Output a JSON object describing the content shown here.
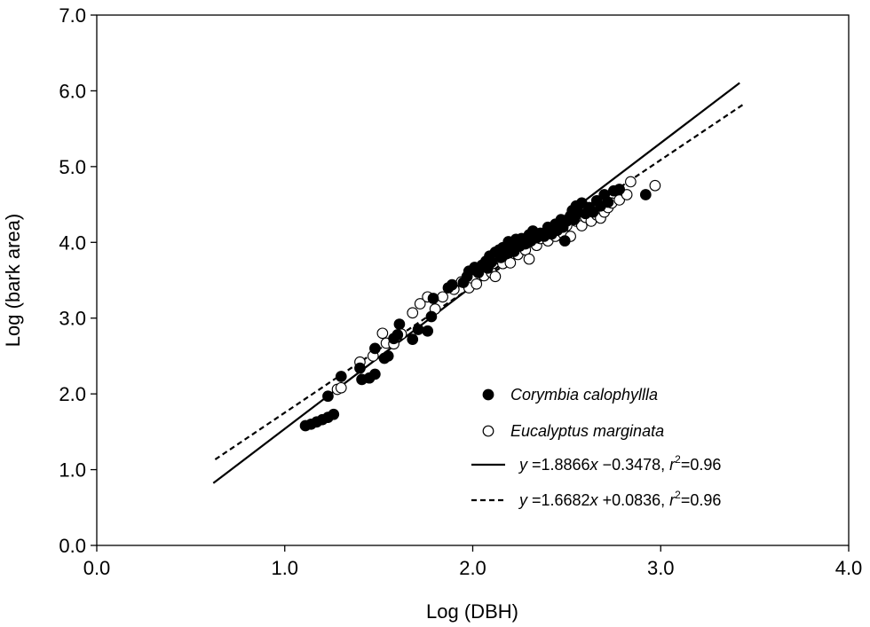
{
  "chart_data": {
    "type": "scatter",
    "xlabel": "Log (DBH)",
    "ylabel": "Log (bark area)",
    "xlim": [
      0.0,
      4.0
    ],
    "ylim": [
      0.0,
      7.0
    ],
    "xticks": [
      "0.0",
      "1.0",
      "2.0",
      "3.0",
      "4.0"
    ],
    "yticks": [
      "0.0",
      "1.0",
      "2.0",
      "3.0",
      "4.0",
      "5.0",
      "6.0",
      "7.0"
    ],
    "grid": false,
    "legend_placement": "bottom-right",
    "series": [
      {
        "name": "Corymbia calophyllla",
        "marker": "filled-circle",
        "color": "#000000",
        "points": [
          [
            1.11,
            1.58
          ],
          [
            1.14,
            1.6
          ],
          [
            1.17,
            1.63
          ],
          [
            1.2,
            1.66
          ],
          [
            1.23,
            1.69
          ],
          [
            1.26,
            1.73
          ],
          [
            1.23,
            1.97
          ],
          [
            1.3,
            2.23
          ],
          [
            1.4,
            2.34
          ],
          [
            1.41,
            2.19
          ],
          [
            1.45,
            2.21
          ],
          [
            1.48,
            2.26
          ],
          [
            1.48,
            2.6
          ],
          [
            1.53,
            2.47
          ],
          [
            1.55,
            2.5
          ],
          [
            1.58,
            2.73
          ],
          [
            1.6,
            2.78
          ],
          [
            1.61,
            2.92
          ],
          [
            1.68,
            2.72
          ],
          [
            1.71,
            2.85
          ],
          [
            1.76,
            2.83
          ],
          [
            1.78,
            3.02
          ],
          [
            1.79,
            3.26
          ],
          [
            1.87,
            3.4
          ],
          [
            1.89,
            3.44
          ],
          [
            1.95,
            3.47
          ],
          [
            1.97,
            3.55
          ],
          [
            1.98,
            3.62
          ],
          [
            2.01,
            3.67
          ],
          [
            2.03,
            3.6
          ],
          [
            2.05,
            3.7
          ],
          [
            2.07,
            3.75
          ],
          [
            2.08,
            3.66
          ],
          [
            2.09,
            3.82
          ],
          [
            2.1,
            3.74
          ],
          [
            2.12,
            3.87
          ],
          [
            2.14,
            3.9
          ],
          [
            2.15,
            3.8
          ],
          [
            2.16,
            3.93
          ],
          [
            2.18,
            3.85
          ],
          [
            2.19,
            4.01
          ],
          [
            2.21,
            3.96
          ],
          [
            2.22,
            3.88
          ],
          [
            2.23,
            4.04
          ],
          [
            2.25,
            3.95
          ],
          [
            2.26,
            4.05
          ],
          [
            2.28,
            3.98
          ],
          [
            2.3,
            4.1
          ],
          [
            2.31,
            4.02
          ],
          [
            2.32,
            4.15
          ],
          [
            2.34,
            4.06
          ],
          [
            2.36,
            4.12
          ],
          [
            2.38,
            4.08
          ],
          [
            2.4,
            4.2
          ],
          [
            2.42,
            4.11
          ],
          [
            2.44,
            4.24
          ],
          [
            2.45,
            4.16
          ],
          [
            2.47,
            4.3
          ],
          [
            2.48,
            4.2
          ],
          [
            2.49,
            4.02
          ],
          [
            2.5,
            4.28
          ],
          [
            2.52,
            4.35
          ],
          [
            2.53,
            4.42
          ],
          [
            2.54,
            4.3
          ],
          [
            2.55,
            4.48
          ],
          [
            2.56,
            4.4
          ],
          [
            2.58,
            4.52
          ],
          [
            2.6,
            4.38
          ],
          [
            2.62,
            4.46
          ],
          [
            2.64,
            4.4
          ],
          [
            2.66,
            4.55
          ],
          [
            2.68,
            4.48
          ],
          [
            2.7,
            4.63
          ],
          [
            2.72,
            4.53
          ],
          [
            2.75,
            4.68
          ],
          [
            2.78,
            4.7
          ],
          [
            2.92,
            4.63
          ]
        ]
      },
      {
        "name": "Eucalyptus marginata",
        "marker": "open-circle",
        "color": "#000000",
        "points": [
          [
            1.28,
            2.06
          ],
          [
            1.3,
            2.08
          ],
          [
            1.4,
            2.42
          ],
          [
            1.47,
            2.5
          ],
          [
            1.52,
            2.8
          ],
          [
            1.54,
            2.67
          ],
          [
            1.58,
            2.66
          ],
          [
            1.62,
            2.79
          ],
          [
            1.68,
            3.07
          ],
          [
            1.72,
            3.19
          ],
          [
            1.76,
            3.28
          ],
          [
            1.8,
            3.12
          ],
          [
            1.84,
            3.28
          ],
          [
            1.9,
            3.38
          ],
          [
            1.94,
            3.48
          ],
          [
            1.98,
            3.4
          ],
          [
            2.02,
            3.45
          ],
          [
            2.04,
            3.62
          ],
          [
            2.06,
            3.56
          ],
          [
            2.08,
            3.7
          ],
          [
            2.1,
            3.6
          ],
          [
            2.12,
            3.55
          ],
          [
            2.14,
            3.78
          ],
          [
            2.16,
            3.72
          ],
          [
            2.18,
            3.82
          ],
          [
            2.2,
            3.73
          ],
          [
            2.22,
            3.9
          ],
          [
            2.24,
            3.84
          ],
          [
            2.26,
            3.96
          ],
          [
            2.28,
            3.9
          ],
          [
            2.3,
            3.78
          ],
          [
            2.32,
            4.0
          ],
          [
            2.34,
            3.96
          ],
          [
            2.36,
            4.05
          ],
          [
            2.38,
            4.1
          ],
          [
            2.4,
            4.02
          ],
          [
            2.42,
            4.14
          ],
          [
            2.44,
            4.08
          ],
          [
            2.46,
            4.18
          ],
          [
            2.48,
            4.12
          ],
          [
            2.5,
            4.22
          ],
          [
            2.52,
            4.08
          ],
          [
            2.55,
            4.28
          ],
          [
            2.58,
            4.22
          ],
          [
            2.6,
            4.33
          ],
          [
            2.63,
            4.28
          ],
          [
            2.66,
            4.36
          ],
          [
            2.68,
            4.32
          ],
          [
            2.7,
            4.4
          ],
          [
            2.72,
            4.46
          ],
          [
            2.74,
            4.52
          ],
          [
            2.78,
            4.56
          ],
          [
            2.82,
            4.63
          ],
          [
            2.84,
            4.8
          ],
          [
            2.97,
            4.75
          ]
        ]
      }
    ],
    "fit_lines": [
      {
        "label": "y =1.8866x −0.3478, r²=0.96",
        "slope": 1.8866,
        "intercept": -0.3478,
        "x_range": [
          0.62,
          3.42
        ],
        "style": "solid"
      },
      {
        "label": "y =1.6682x +0.0836, r²=0.96",
        "slope": 1.6682,
        "intercept": 0.0836,
        "x_range": [
          0.63,
          3.45
        ],
        "style": "dashed"
      }
    ],
    "legend": {
      "entries": [
        {
          "text": "Corymbia calophyllla",
          "italic": true
        },
        {
          "text": "Eucalyptus marginata",
          "italic": true
        },
        {
          "prefix": "y",
          "text": " =1.8866",
          "var": "x",
          "text2": " −0.3478, ",
          "r": "r",
          "sup": "2",
          "tail": "=0.96"
        },
        {
          "prefix": "y",
          "text": " =1.6682",
          "var": "x",
          "text2": " +0.0836, ",
          "r": "r",
          "sup": "2",
          "tail": "=0.96"
        }
      ]
    }
  }
}
